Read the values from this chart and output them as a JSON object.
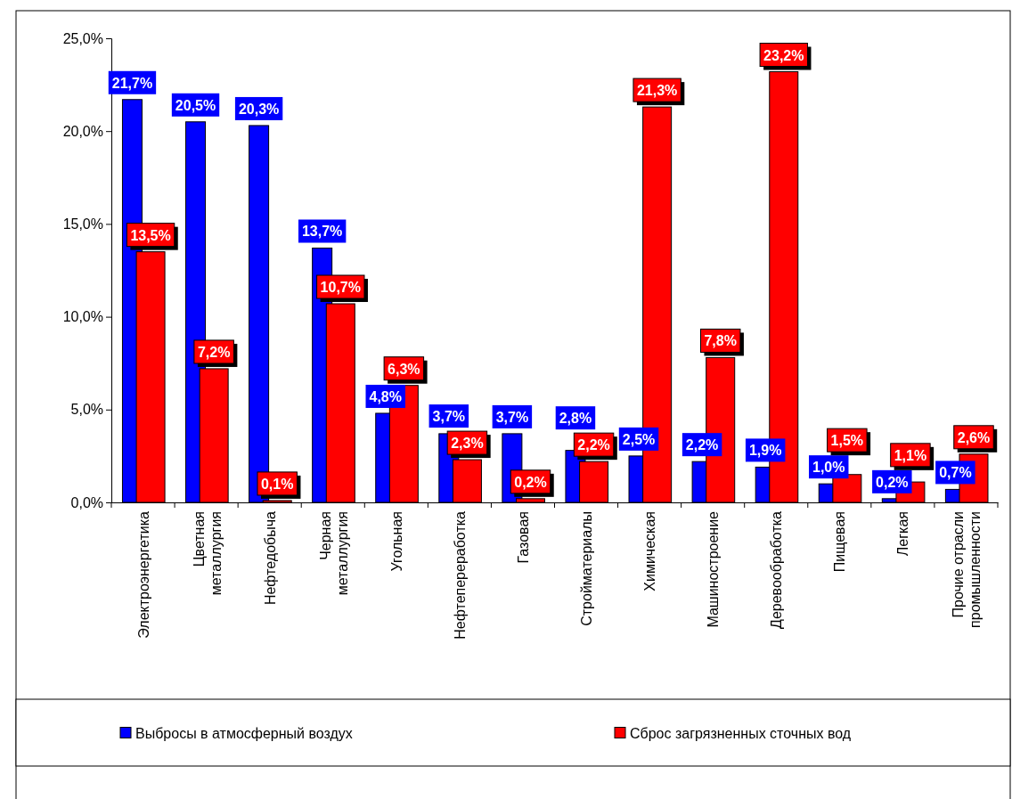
{
  "chart_data": {
    "type": "bar",
    "categories": [
      "Электроэнергетика",
      "Цветная металлургия",
      "Нефтедобыча",
      "Черная металлургия",
      "Угольная",
      "Нефтепереработка",
      "Газовая",
      "Стройматериалы",
      "Химическая",
      "Машиностроение",
      "Деревообработка",
      "Пищевая",
      "Легкая",
      "Прочие отрасли промышленности"
    ],
    "series": [
      {
        "name": "Выбросы в атмосферный воздух",
        "color": "#0000ff",
        "values": [
          21.7,
          20.5,
          20.3,
          13.7,
          4.8,
          3.7,
          3.7,
          2.8,
          2.5,
          2.2,
          1.9,
          1.0,
          0.2,
          0.7
        ],
        "value_labels": [
          "21,7%",
          "20,5%",
          "20,3%",
          "13,7%",
          "4,8%",
          "3,7%",
          "3,7%",
          "2,8%",
          "2,5%",
          "2,2%",
          "1,9%",
          "1,0%",
          "0,2%",
          "0,7%"
        ]
      },
      {
        "name": "Сброс загрязненных сточных вод",
        "color": "#ff0000",
        "values": [
          13.5,
          7.2,
          0.1,
          10.7,
          6.3,
          2.3,
          0.2,
          2.2,
          21.3,
          7.8,
          23.2,
          1.5,
          1.1,
          2.6
        ],
        "value_labels": [
          "13,5%",
          "7,2%",
          "0,1%",
          "10,7%",
          "6,3%",
          "2,3%",
          "0,2%",
          "2,2%",
          "21,3%",
          "7,8%",
          "23,2%",
          "1,5%",
          "1,1%",
          "2,6%"
        ]
      }
    ],
    "ylim": [
      0,
      25
    ],
    "yticks": [
      {
        "value": 0,
        "label": "0,0%"
      },
      {
        "value": 5,
        "label": "5,0%"
      },
      {
        "value": 10,
        "label": "10,0%"
      },
      {
        "value": 15,
        "label": "15,0%"
      },
      {
        "value": 20,
        "label": "20,0%"
      },
      {
        "value": 25,
        "label": "25,0%"
      }
    ],
    "grid": false,
    "legend": "bottom"
  }
}
